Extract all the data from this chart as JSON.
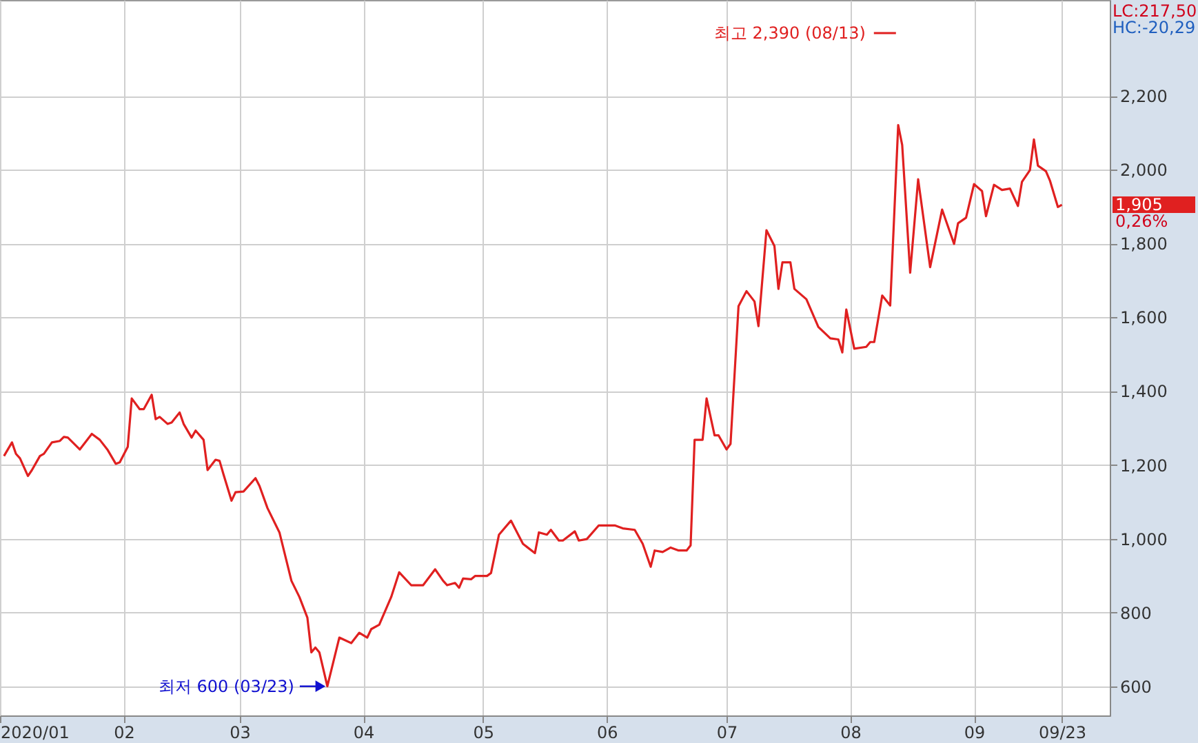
{
  "chart_data": {
    "type": "line",
    "x": [
      "2020-01-02",
      "2020-01-04",
      "2020-01-05",
      "2020-01-06",
      "2020-01-08",
      "2020-01-09",
      "2020-01-11",
      "2020-01-12",
      "2020-01-14",
      "2020-01-16",
      "2020-01-17",
      "2020-01-18",
      "2020-01-21",
      "2020-01-24",
      "2020-01-26",
      "2020-01-28",
      "2020-01-30",
      "2020-01-31",
      "2020-02-02",
      "2020-02-03",
      "2020-02-05",
      "2020-02-06",
      "2020-02-08",
      "2020-02-09",
      "2020-02-10",
      "2020-02-12",
      "2020-02-13",
      "2020-02-15",
      "2020-02-16",
      "2020-02-18",
      "2020-02-19",
      "2020-02-21",
      "2020-02-22",
      "2020-02-24",
      "2020-02-25",
      "2020-02-26",
      "2020-02-28",
      "2020-02-29",
      "2020-03-02",
      "2020-03-05",
      "2020-03-06",
      "2020-03-08",
      "2020-03-11",
      "2020-03-14",
      "2020-03-16",
      "2020-03-18",
      "2020-03-19",
      "2020-03-20",
      "2020-03-21",
      "2020-03-23",
      "2020-03-26",
      "2020-03-29",
      "2020-03-31",
      "2020-04-02",
      "2020-04-03",
      "2020-04-05",
      "2020-04-08",
      "2020-04-10",
      "2020-04-13",
      "2020-04-16",
      "2020-04-19",
      "2020-04-21",
      "2020-04-22",
      "2020-04-24",
      "2020-04-25",
      "2020-04-26",
      "2020-04-28",
      "2020-04-29",
      "2020-05-02",
      "2020-05-03",
      "2020-05-05",
      "2020-05-08",
      "2020-05-11",
      "2020-05-14",
      "2020-05-15",
      "2020-05-17",
      "2020-05-18",
      "2020-05-20",
      "2020-05-21",
      "2020-05-24",
      "2020-05-25",
      "2020-05-27",
      "2020-05-30",
      "2020-05-31",
      "2020-06-03",
      "2020-06-05",
      "2020-06-08",
      "2020-06-10",
      "2020-06-12",
      "2020-06-13",
      "2020-06-15",
      "2020-06-17",
      "2020-06-19",
      "2020-06-21",
      "2020-06-22",
      "2020-06-23",
      "2020-06-25",
      "2020-06-26",
      "2020-06-28",
      "2020-06-29",
      "2020-07-01",
      "2020-07-02",
      "2020-07-04",
      "2020-07-06",
      "2020-07-08",
      "2020-07-09",
      "2020-07-11",
      "2020-07-13",
      "2020-07-14",
      "2020-07-15",
      "2020-07-17",
      "2020-07-18",
      "2020-07-21",
      "2020-07-24",
      "2020-07-27",
      "2020-07-29",
      "2020-07-30",
      "2020-07-31",
      "2020-08-02",
      "2020-08-05",
      "2020-08-06",
      "2020-08-07",
      "2020-08-09",
      "2020-08-11",
      "2020-08-13",
      "2020-08-14",
      "2020-08-16",
      "2020-08-18",
      "2020-08-21",
      "2020-08-24",
      "2020-08-25",
      "2020-08-27",
      "2020-08-28",
      "2020-08-30",
      "2020-09-01",
      "2020-09-03",
      "2020-09-04",
      "2020-09-06",
      "2020-09-08",
      "2020-09-10",
      "2020-09-12",
      "2020-09-13",
      "2020-09-15",
      "2020-09-16",
      "2020-09-17",
      "2020-09-19",
      "2020-09-20",
      "2020-09-22",
      "2020-09-23"
    ],
    "series": [
      {
        "color": "#e02020",
        "values": [
          1224,
          1261,
          1230,
          1218,
          1170,
          1186,
          1224,
          1230,
          1261,
          1265,
          1276,
          1274,
          1242,
          1284,
          1268,
          1240,
          1203,
          1207,
          1249,
          1380,
          1351,
          1351,
          1390,
          1324,
          1330,
          1311,
          1315,
          1342,
          1311,
          1274,
          1293,
          1268,
          1186,
          1214,
          1211,
          1174,
          1103,
          1126,
          1128,
          1164,
          1143,
          1083,
          1017,
          886,
          842,
          786,
          692,
          705,
          692,
          600,
          732,
          717,
          745,
          732,
          755,
          767,
          842,
          909,
          874,
          874,
          917,
          886,
          874,
          880,
          867,
          892,
          890,
          899,
          899,
          907,
          1011,
          1049,
          986,
          961,
          1017,
          1011,
          1024,
          995,
          995,
          1020,
          995,
          999,
          1036,
          1036,
          1036,
          1028,
          1024,
          986,
          924,
          968,
          964,
          976,
          968,
          968,
          982,
          1268,
          1268,
          1380,
          1280,
          1280,
          1242,
          1257,
          1630,
          1671,
          1643,
          1576,
          1836,
          1793,
          1677,
          1749,
          1749,
          1677,
          1649,
          1574,
          1543,
          1540,
          1505,
          1621,
          1515,
          1520,
          1533,
          1533,
          1659,
          1632,
          2121,
          2067,
          1721,
          1974,
          1736,
          1892,
          1861,
          1799,
          1855,
          1870,
          1961,
          1942,
          1874,
          1959,
          1945,
          1949,
          1902,
          1967,
          1999,
          2082,
          2011,
          1996,
          1971,
          1899,
          1905
        ]
      }
    ],
    "xlim": [
      "2020-01-01",
      "2020-10-05"
    ],
    "xticks": [
      {
        "value": "2020-01-01",
        "label": "2020/01"
      },
      {
        "value": "2020-02-01",
        "label": "02"
      },
      {
        "value": "2020-03-01",
        "label": "03"
      },
      {
        "value": "2020-04-01",
        "label": "04"
      },
      {
        "value": "2020-05-01",
        "label": "05"
      },
      {
        "value": "2020-06-01",
        "label": "06"
      },
      {
        "value": "2020-07-01",
        "label": "07"
      },
      {
        "value": "2020-08-01",
        "label": "08"
      },
      {
        "value": "2020-09-01",
        "label": "09"
      },
      {
        "value": "2020-09-23",
        "label": "09/23"
      }
    ],
    "ylim": [
      521,
      2460
    ],
    "yticks": [
      600,
      800,
      {
        "value": 1000,
        "label": "1,000"
      },
      {
        "value": 1200,
        "label": "1,200"
      },
      {
        "value": 1400,
        "label": "1,400"
      },
      {
        "value": 1600,
        "label": "1,600"
      },
      {
        "value": 1800,
        "label": "1,800"
      },
      {
        "value": 2000,
        "label": "2,000"
      },
      {
        "value": 2200,
        "label": "2,200"
      }
    ],
    "grid": true,
    "line_style": "solid",
    "annotations": [
      "LC:217,50",
      "HC:-20,29",
      "1,905",
      "0,26%",
      "최고 2,390 (08/13)",
      {
        "text": "최저 600 (03/23)",
        "x": "2020-03-23",
        "y": 600
      }
    ]
  }
}
